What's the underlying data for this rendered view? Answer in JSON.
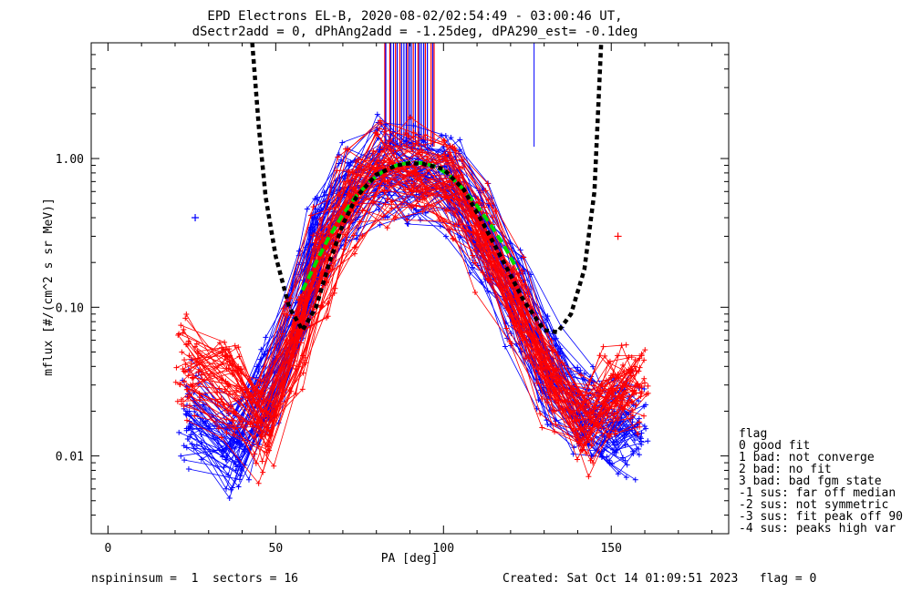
{
  "chart_data": {
    "type": "scatter",
    "title": "EPD Electrons EL-B, 2020-08-02/02:54:49 - 03:00:46 UT,",
    "subtitle": "dSectr2add = 0, dPhAng2add = -1.25deg, dPA290_est=  -0.1deg",
    "xlabel": "PA [deg]",
    "ylabel": "mflux [#/(cm^2 s sr MeV)]",
    "xlim": [
      -5,
      185
    ],
    "ylim": [
      0.003,
      6
    ],
    "yscale": "log",
    "x_ticks": [
      "0",
      "50",
      "100",
      "150"
    ],
    "x_tick_values": [
      0,
      50,
      100,
      150
    ],
    "y_ticks": [
      "0.01",
      "0.10",
      "1.00"
    ],
    "y_tick_values": [
      0.01,
      0.1,
      1.0
    ],
    "colors": {
      "series_a": "#ff0000",
      "series_b": "#0000ff",
      "fit": "#00dd00",
      "envelope": "#000000"
    },
    "series": [
      {
        "color": "#0000ff",
        "points": [
          [
            25,
            0.019
          ],
          [
            38,
            0.012
          ],
          [
            48,
            0.028
          ],
          [
            58,
            0.11
          ],
          [
            63,
            0.3
          ],
          [
            72,
            0.6
          ],
          [
            82,
            0.85
          ],
          [
            92,
            0.82
          ],
          [
            102,
            0.68
          ],
          [
            112,
            0.3
          ],
          [
            122,
            0.12
          ],
          [
            132,
            0.04
          ],
          [
            142,
            0.02
          ],
          [
            150,
            0.016
          ],
          [
            157,
            0.016
          ]
        ]
      },
      {
        "color": "#ff0000",
        "points": [
          [
            24,
            0.036
          ],
          [
            36,
            0.03
          ],
          [
            46,
            0.015
          ],
          [
            56,
            0.06
          ],
          [
            64,
            0.2
          ],
          [
            72,
            0.48
          ],
          [
            82,
            0.78
          ],
          [
            92,
            0.8
          ],
          [
            102,
            0.62
          ],
          [
            112,
            0.28
          ],
          [
            122,
            0.1
          ],
          [
            132,
            0.03
          ],
          [
            142,
            0.016
          ],
          [
            150,
            0.026
          ],
          [
            157,
            0.03
          ]
        ]
      }
    ],
    "fit_curve": [
      [
        58,
        0.13
      ],
      [
        62,
        0.2
      ],
      [
        66,
        0.3
      ],
      [
        70,
        0.42
      ],
      [
        74,
        0.56
      ],
      [
        78,
        0.7
      ],
      [
        82,
        0.82
      ],
      [
        86,
        0.9
      ],
      [
        90,
        0.94
      ],
      [
        94,
        0.93
      ],
      [
        98,
        0.88
      ],
      [
        102,
        0.76
      ],
      [
        106,
        0.62
      ],
      [
        110,
        0.48
      ],
      [
        114,
        0.36
      ],
      [
        118,
        0.26
      ],
      [
        122,
        0.18
      ]
    ],
    "envelope_curve": [
      [
        43,
        6
      ],
      [
        45,
        1.6
      ],
      [
        47,
        0.55
      ],
      [
        50,
        0.22
      ],
      [
        54,
        0.1
      ],
      [
        58,
        0.07
      ],
      [
        62,
        0.1
      ],
      [
        66,
        0.2
      ],
      [
        70,
        0.36
      ],
      [
        74,
        0.55
      ],
      [
        80,
        0.78
      ],
      [
        86,
        0.9
      ],
      [
        90,
        0.93
      ],
      [
        94,
        0.92
      ],
      [
        100,
        0.85
      ],
      [
        106,
        0.62
      ],
      [
        112,
        0.36
      ],
      [
        118,
        0.2
      ],
      [
        124,
        0.11
      ],
      [
        130,
        0.07
      ],
      [
        134,
        0.068
      ],
      [
        138,
        0.09
      ],
      [
        142,
        0.18
      ],
      [
        145,
        0.6
      ],
      [
        147,
        6
      ]
    ],
    "vertical_lines": {
      "y_range": [
        1.2,
        6
      ],
      "red_x": [
        82.5,
        84,
        85.7,
        87,
        89.3,
        91,
        92.4,
        94.6,
        96.3,
        97.2
      ],
      "blue_x": [
        82.8,
        84.3,
        85.1,
        86.2,
        87.5,
        88.2,
        88.9,
        89.8,
        90.4,
        91.6,
        92.8,
        93.4,
        94.1,
        95.2,
        96.8
      ],
      "single_blue_x": 127,
      "single_blue_y_range": [
        1.2,
        6
      ]
    },
    "outliers": [
      {
        "x": 152,
        "y": 0.3,
        "color": "#ff0000"
      },
      {
        "x": 26,
        "y": 0.4,
        "color": "#0000ff"
      },
      {
        "x": 81,
        "y": 1.15,
        "color": "#0000ff"
      }
    ],
    "legend": {
      "position": "right",
      "title": "flag",
      "items": [
        " 0 good fit",
        " 1 bad: not converge",
        " 2 bad: no fit",
        " 3 bad: bad fgm state",
        "-1 sus: far off median",
        "-2 sus: not symmetric",
        "-3 sus: fit peak off 90",
        "-4 sus: peaks high var"
      ]
    },
    "footer_left": "nspininsum =  1  sectors = 16",
    "footer_right": "Created: Sat Oct 14 01:09:51 2023   flag = 0"
  }
}
